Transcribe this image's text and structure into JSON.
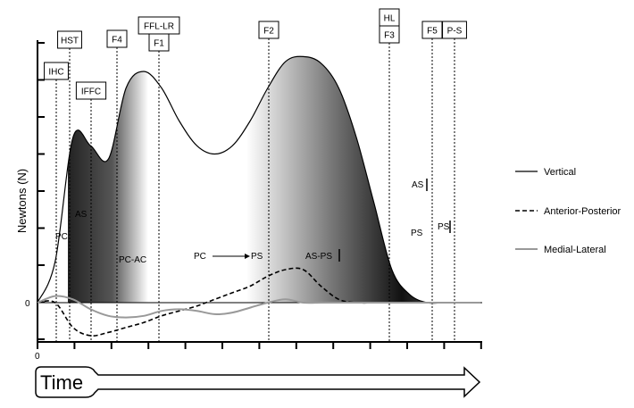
{
  "chart_data": {
    "type": "line",
    "ylabel": "Newtons (N)",
    "xlabel": "Time",
    "y_zero_label": "0",
    "x_zero_label": "0",
    "x": [
      0,
      1,
      2,
      3,
      4,
      5,
      6,
      7,
      8,
      9,
      10,
      11,
      12,
      13,
      14,
      15,
      16,
      17,
      18,
      19,
      20,
      21,
      22,
      23,
      24,
      25
    ],
    "series": [
      {
        "name": "Vertical",
        "style": "solid",
        "color": "#000000",
        "values": [
          0,
          0.25,
          1.0,
          0.95,
          0.87,
          1.3,
          1.4,
          1.3,
          1.1,
          0.95,
          0.9,
          0.95,
          1.1,
          1.3,
          1.46,
          1.49,
          1.45,
          1.3,
          1.0,
          0.6,
          0.2,
          0.05,
          0,
          0,
          0,
          0
        ]
      },
      {
        "name": "Anterior-Posterior",
        "style": "dashed",
        "color": "#000000",
        "values": [
          0,
          0,
          -0.15,
          -0.2,
          -0.18,
          -0.15,
          -0.12,
          -0.08,
          -0.05,
          -0.02,
          0.02,
          0.06,
          0.1,
          0.16,
          0.2,
          0.2,
          0.1,
          0.02,
          0,
          0,
          0,
          0,
          0,
          0,
          0,
          0
        ]
      },
      {
        "name": "Medial-Lateral",
        "style": "solid",
        "color": "#999999",
        "values": [
          0,
          0.04,
          0.02,
          -0.04,
          -0.08,
          -0.09,
          -0.08,
          -0.05,
          -0.04,
          -0.05,
          -0.07,
          -0.06,
          -0.03,
          0,
          0.02,
          0,
          0,
          0,
          0,
          0,
          0,
          0,
          0,
          0,
          0,
          0
        ]
      }
    ],
    "events": [
      {
        "lines": [
          "IHC"
        ]
      },
      {
        "lines": [
          "HST"
        ]
      },
      {
        "lines": [
          "IFFC"
        ]
      },
      {
        "lines": [
          "F4"
        ]
      },
      {
        "lines": [
          "FFL-LR",
          "F1"
        ]
      },
      {
        "lines": [
          "F2"
        ]
      },
      {
        "lines": [
          "HL",
          "F3"
        ]
      },
      {
        "lines": [
          "F5"
        ]
      },
      {
        "lines": [
          "P-S"
        ]
      }
    ],
    "phase_labels": [
      "PC",
      "AS",
      "PC-AC",
      "PC",
      "PS",
      "AS-PS",
      "AS",
      "PS",
      "PS"
    ],
    "legend_position": "right",
    "grid": false
  }
}
